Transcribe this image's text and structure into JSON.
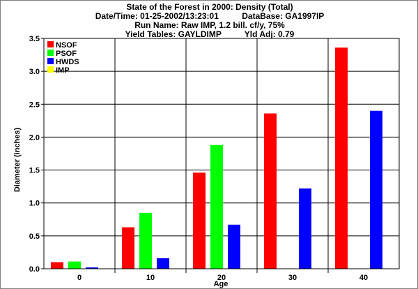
{
  "chart_data": {
    "type": "bar",
    "title_lines": [
      "State of the Forest in 2000: Density (Total)",
      "Date/Time: 01-25-2002/13:23:01          DataBase: GA1997IP",
      "Run Name: Raw IMP, 1.2 bill. cf/y, 75%",
      "Yield Tables: GAYLDIMP          Yld Adj: 0.79"
    ],
    "xlabel": "Age",
    "ylabel": "Diameter (inches)",
    "categories": [
      "0",
      "10",
      "20",
      "30",
      "40"
    ],
    "yticks": [
      "0.0",
      "0.5",
      "1.0",
      "1.5",
      "2.0",
      "2.5",
      "3.0",
      "3.5"
    ],
    "ylim": [
      0,
      3.5
    ],
    "grid": true,
    "legend_position": "top-left",
    "series": [
      {
        "name": "NSOF",
        "color": "#ff0000",
        "values": [
          0.1,
          0.63,
          1.46,
          2.36,
          3.36
        ]
      },
      {
        "name": "PSOF",
        "color": "#00ff00",
        "values": [
          0.11,
          0.85,
          1.88,
          0,
          0
        ]
      },
      {
        "name": "HWDS",
        "color": "#0000ff",
        "values": [
          0.02,
          0.16,
          0.67,
          1.22,
          2.4
        ]
      },
      {
        "name": "IMP",
        "color": "#ffff00",
        "values": [
          0,
          0,
          0,
          0,
          0
        ]
      }
    ]
  }
}
